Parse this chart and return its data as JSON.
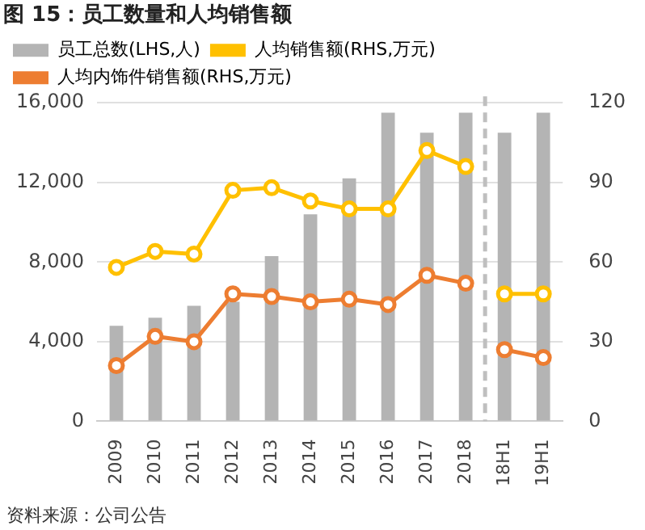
{
  "chart_data": {
    "type": "bar",
    "title": "图 15：员工数量和人均销售额",
    "categories": [
      "2009",
      "2010",
      "2011",
      "2012",
      "2013",
      "2014",
      "2015",
      "2016",
      "2017",
      "2018",
      "18H1",
      "19H1"
    ],
    "series": [
      {
        "name": "员工总数(LHS,人)",
        "color": "#b4b4b4",
        "values": [
          4800,
          5200,
          5800,
          6000,
          8300,
          10400,
          12200,
          15500,
          14500,
          15500,
          14500,
          15500
        ]
      },
      {
        "name": "人均销售额(RHS,万元)",
        "type": "line",
        "axis": "y2",
        "color": "#ffc000",
        "values": [
          58,
          64,
          63,
          87,
          88,
          83,
          80,
          80,
          102,
          96,
          null,
          null
        ]
      },
      {
        "name": "人均内饰件销售额(RHS,万元)",
        "type": "line",
        "axis": "y2",
        "color": "#ed7d31",
        "values": [
          21,
          32,
          30,
          48,
          47,
          45,
          46,
          44,
          55,
          52,
          null,
          null
        ]
      },
      {
        "type": "line",
        "axis": "y2",
        "color": "#ed7d31",
        "values": [
          null,
          null,
          null,
          null,
          null,
          null,
          null,
          null,
          null,
          null,
          27,
          24
        ]
      },
      {
        "type": "line",
        "axis": "y2",
        "color": "#ffc000",
        "values": [
          null,
          null,
          null,
          null,
          null,
          null,
          null,
          null,
          null,
          null,
          48,
          48
        ]
      }
    ],
    "ylim": [
      0,
      16000
    ],
    "yticks": [
      {
        "value": 0,
        "label": "0"
      },
      {
        "value": 4000,
        "label": "4,000"
      },
      {
        "value": 8000,
        "label": "8,000"
      },
      {
        "value": 12000,
        "label": "12,000"
      },
      {
        "value": 16000,
        "label": "16,000"
      }
    ],
    "y2lim": [
      0,
      120
    ],
    "y2ticks": [
      0,
      30,
      60,
      90,
      120
    ],
    "ref_lines": [
      {
        "axis": "x",
        "value": "18H1",
        "color": "#bfbfbf",
        "line_style": "dashed"
      }
    ],
    "grid": "y",
    "legend": "top",
    "marker": "circle",
    "line_style": "solid",
    "annotations": [
      "资料来源：公司公告"
    ]
  }
}
